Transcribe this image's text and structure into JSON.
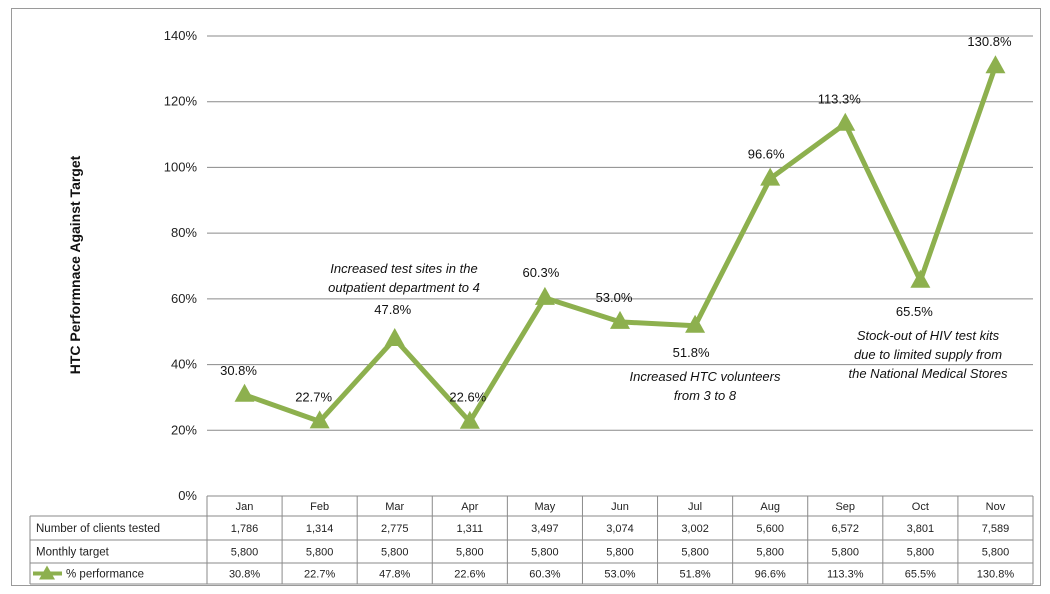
{
  "chart_data": {
    "type": "line",
    "ylabel": "HTC Performnace Against Target",
    "ylim": [
      0,
      140
    ],
    "yticks": [
      "0%",
      "20%",
      "40%",
      "60%",
      "80%",
      "100%",
      "120%",
      "140%"
    ],
    "ytick_values": [
      0,
      20,
      40,
      60,
      80,
      100,
      120,
      140
    ],
    "categories": [
      "Jan",
      "Feb",
      "Mar",
      "Apr",
      "May",
      "Jun",
      "Jul",
      "Aug",
      "Sep",
      "Oct",
      "Nov"
    ],
    "grid": true,
    "legend": "in data table",
    "series": [
      {
        "name": "% performance",
        "color": "#8db04e",
        "marker": "triangle",
        "values": [
          30.8,
          22.7,
          47.8,
          22.6,
          60.3,
          53.0,
          51.8,
          96.6,
          113.3,
          65.5,
          130.8
        ],
        "labels": [
          "30.8%",
          "22.7%",
          "47.8%",
          "22.6%",
          "60.3%",
          "53.0%",
          "51.8%",
          "96.6%",
          "113.3%",
          "65.5%",
          "130.8%"
        ]
      }
    ],
    "table": {
      "rows": [
        {
          "header": "Number of clients tested",
          "values": [
            "1,786",
            "1,314",
            "2,775",
            "1,311",
            "3,497",
            "3,074",
            "3,002",
            "5,600",
            "6,572",
            "3,801",
            "7,589"
          ]
        },
        {
          "header": "Monthly target",
          "values": [
            "5,800",
            "5,800",
            "5,800",
            "5,800",
            "5,800",
            "5,800",
            "5,800",
            "5,800",
            "5,800",
            "5,800",
            "5,800"
          ]
        },
        {
          "header": "% performance",
          "values": [
            "30.8%",
            "22.7%",
            "47.8%",
            "22.6%",
            "60.3%",
            "53.0%",
            "51.8%",
            "96.6%",
            "113.3%",
            "65.5%",
            "130.8%"
          ]
        }
      ]
    },
    "annotations": [
      {
        "lines": [
          "Increased test sites in the",
          "outpatient department to 4"
        ]
      },
      {
        "lines": [
          "Increased HTC volunteers",
          "from 3 to 8"
        ]
      },
      {
        "lines": [
          "Stock-out of HIV test kits",
          "due to limited supply from",
          "the National Medical Stores"
        ]
      }
    ]
  }
}
